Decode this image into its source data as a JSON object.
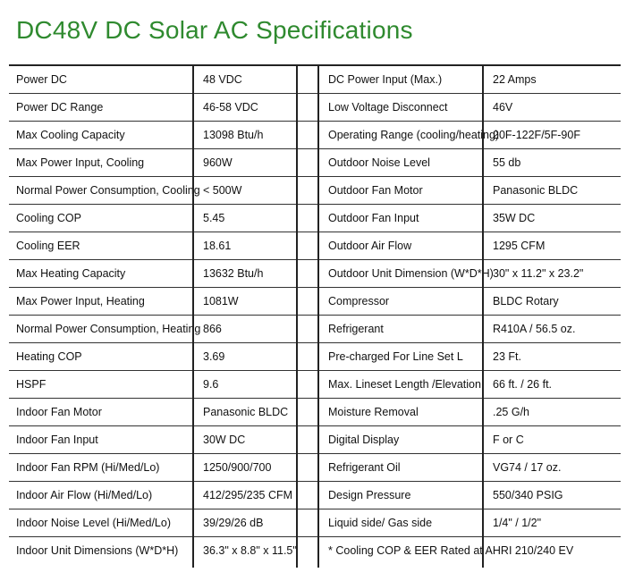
{
  "title": "DC48V DC Solar AC Specifications",
  "rows": [
    [
      "Power DC",
      "48 VDC",
      "DC Power Input (Max.)",
      "22 Amps"
    ],
    [
      "Power DC Range",
      "46-58 VDC",
      "Low Voltage Disconnect",
      "46V"
    ],
    [
      "Max Cooling Capacity",
      "13098 Btu/h",
      "Operating Range (cooling/heating)",
      "20F-122F/5F-90F"
    ],
    [
      "Max Power Input, Cooling",
      "960W",
      "Outdoor Noise Level",
      "55 db"
    ],
    [
      "Normal Power Consumption, Cooling",
      "< 500W",
      "Outdoor Fan Motor",
      "Panasonic BLDC"
    ],
    [
      "Cooling COP",
      "5.45",
      "Outdoor Fan Input",
      "35W DC"
    ],
    [
      "Cooling EER",
      "18.61",
      "Outdoor Air Flow",
      "1295 CFM"
    ],
    [
      "Max Heating Capacity",
      "13632 Btu/h",
      "Outdoor Unit Dimension (W*D*H)",
      "30\" x 11.2\" x 23.2\""
    ],
    [
      "Max Power Input, Heating",
      "1081W",
      "Compressor",
      "BLDC Rotary"
    ],
    [
      "Normal Power Consumption, Heating",
      "866",
      "Refrigerant",
      "R410A / 56.5 oz."
    ],
    [
      "Heating COP",
      "3.69",
      "Pre-charged For Line Set L",
      "23 Ft."
    ],
    [
      "HSPF",
      "9.6",
      "Max. Lineset Length /Elevation",
      "66 ft.  / 26 ft."
    ],
    [
      "Indoor Fan Motor",
      "Panasonic BLDC",
      "Moisture Removal",
      ".25 G/h"
    ],
    [
      "Indoor Fan Input",
      "30W DC",
      "Digital Display",
      "F or C"
    ],
    [
      "Indoor Fan RPM (Hi/Med/Lo)",
      "1250/900/700",
      "Refrigerant Oil",
      "VG74 / 17 oz."
    ],
    [
      "Indoor Air Flow (Hi/Med/Lo)",
      "412/295/235 CFM",
      "Design Pressure",
      "550/340 PSIG"
    ],
    [
      "Indoor Noise Level (Hi/Med/Lo)",
      "39/29/26 dB",
      "Liquid side/ Gas side",
      "1/4\" / 1/2\""
    ]
  ],
  "last_row": {
    "label": "Indoor Unit Dimensions (W*D*H)",
    "value": "36.3\" x 8.8\" x 11.5\"",
    "note": "* Cooling COP & EER Rated at AHRI 210/240 EV"
  },
  "colors": {
    "title": "#2f8a2f",
    "lines": "#222222"
  }
}
